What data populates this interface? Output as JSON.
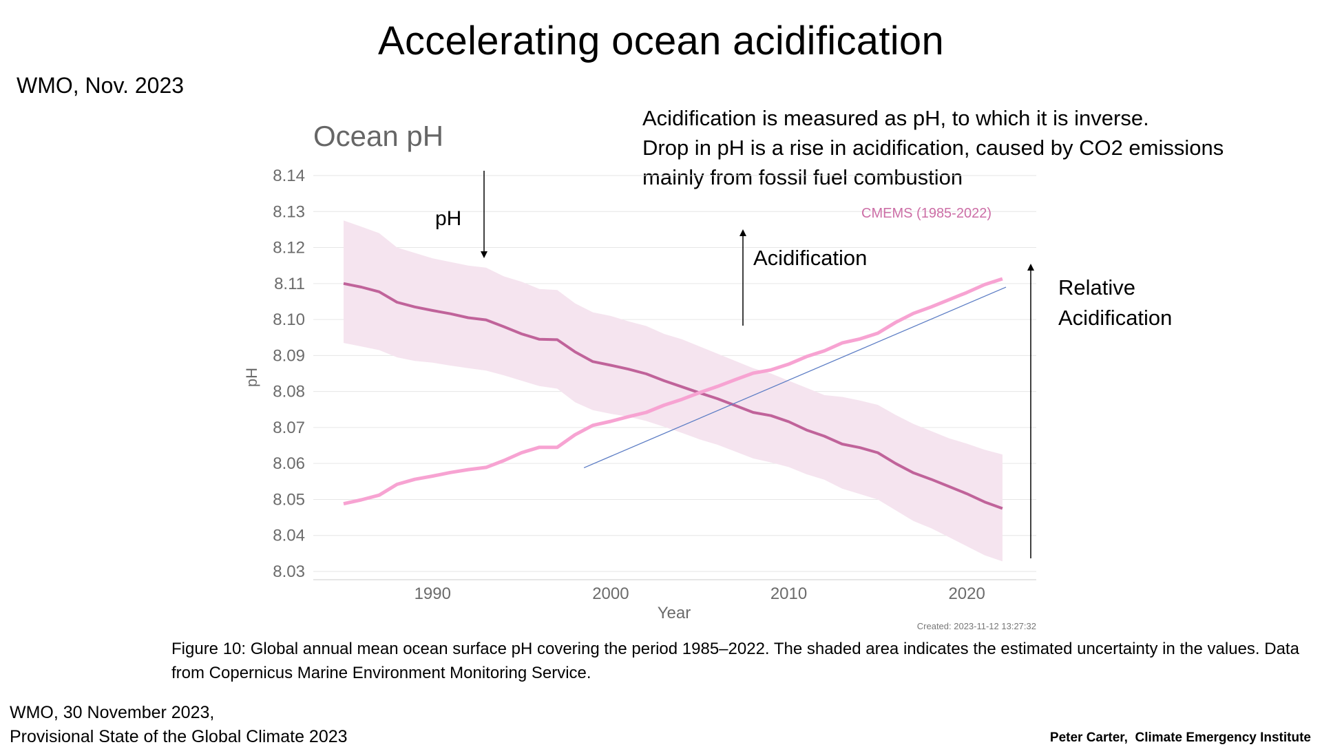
{
  "slide": {
    "title": "Accelerating ocean acidification",
    "wmo_short": "WMO, Nov. 2023",
    "explanation_lines": [
      "Acidification is measured as pH, to which it is inverse.",
      "Drop in pH is a rise in acidification, caused by CO2 emissions",
      "mainly from fossil fuel combustion"
    ],
    "caption": "Figure 10: Global annual mean ocean surface pH covering the period 1985–2022. The shaded area indicates the estimated uncertainty in the values. Data from Copernicus Marine Environment Monitoring Service.",
    "source_line1": "WMO, 30 November 2023,",
    "source_line2": "Provisional State of the Global Climate 2023",
    "credit": "Peter Carter,  Climate Emergency Institute"
  },
  "chart_data": {
    "type": "line",
    "title": "Ocean pH",
    "xlabel": "Year",
    "ylabel": "pH",
    "xlim": [
      1983.3,
      2023.9
    ],
    "ylim": [
      8.03,
      8.14
    ],
    "x_ticks": [
      1990,
      2000,
      2010,
      2020
    ],
    "y_ticks": [
      8.03,
      8.04,
      8.05,
      8.06,
      8.07,
      8.08,
      8.09,
      8.1,
      8.11,
      8.12,
      8.13,
      8.14
    ],
    "y_tick_labels": [
      "8.03",
      "8.04",
      "8.05",
      "8.06",
      "8.07",
      "8.08",
      "8.09",
      "8.10",
      "8.11",
      "8.12",
      "8.13",
      "8.14"
    ],
    "grid": true,
    "legend": {
      "label": "CMEMS (1985-2022)",
      "placement": "top-right"
    },
    "created": "Created: 2023-11-12 13:27:32",
    "colors": {
      "ph_line": "#c0639a",
      "band": "#f5e4ef",
      "inverted_line": "#f7a3d2",
      "trend_line": "#5b7cc4",
      "legend": "#cc6ea6",
      "arrow": "#000000"
    },
    "series": [
      {
        "name": "CMEMS (1985-2022)",
        "x": [
          1985,
          1986,
          1987,
          1988,
          1989,
          1990,
          1991,
          1992,
          1993,
          1994,
          1995,
          1996,
          1997,
          1998,
          1999,
          2000,
          2001,
          2002,
          2003,
          2004,
          2005,
          2006,
          2007,
          2008,
          2009,
          2010,
          2011,
          2012,
          2013,
          2014,
          2015,
          2016,
          2017,
          2018,
          2019,
          2020,
          2021,
          2022
        ],
        "y": [
          8.11,
          8.109,
          8.1077,
          8.1048,
          8.1035,
          8.1025,
          8.1016,
          8.1005,
          8.0999,
          8.098,
          8.096,
          8.0945,
          8.0944,
          8.091,
          8.0883,
          8.0873,
          8.0862,
          8.0849,
          8.083,
          8.0813,
          8.0796,
          8.078,
          8.0761,
          8.0742,
          8.0733,
          8.0716,
          8.0693,
          8.0676,
          8.0654,
          8.0644,
          8.063,
          8.06,
          8.0574,
          8.0556,
          8.0536,
          8.0516,
          8.0493,
          8.0475
        ],
        "y_upper": [
          8.1275,
          8.1258,
          8.124,
          8.12,
          8.1185,
          8.117,
          8.116,
          8.115,
          8.1144,
          8.112,
          8.1105,
          8.1085,
          8.1082,
          8.1045,
          8.102,
          8.101,
          8.0995,
          8.0982,
          8.096,
          8.0945,
          8.0925,
          8.0905,
          8.0885,
          8.0865,
          8.085,
          8.083,
          8.081,
          8.079,
          8.0785,
          8.0775,
          8.0763,
          8.0735,
          8.071,
          8.069,
          8.067,
          8.0655,
          8.0638,
          8.0625
        ],
        "y_lower": [
          8.0935,
          8.0925,
          8.0915,
          8.0895,
          8.0885,
          8.088,
          8.0872,
          8.0865,
          8.0858,
          8.0845,
          8.083,
          8.0815,
          8.0808,
          8.077,
          8.0748,
          8.0738,
          8.073,
          8.0718,
          8.0702,
          8.0685,
          8.0667,
          8.0652,
          8.0633,
          8.0614,
          8.0603,
          8.059,
          8.057,
          8.0555,
          8.053,
          8.0515,
          8.05,
          8.047,
          8.044,
          8.042,
          8.0395,
          8.037,
          8.0345,
          8.0328
        ]
      },
      {
        "name": "",
        "x": [
          1985,
          1986,
          1987,
          1988,
          1989,
          1990,
          1991,
          1992,
          1993,
          1994,
          1995,
          1996,
          1997,
          1998,
          1999,
          2000,
          2001,
          2002,
          2003,
          2004,
          2005,
          2006,
          2007,
          2008,
          2009,
          2010,
          2011,
          2012,
          2013,
          2014,
          2015,
          2016,
          2017,
          2018,
          2019,
          2020,
          2021,
          2022
        ],
        "y": [
          8.0488,
          8.0499,
          8.0512,
          8.0542,
          8.0556,
          8.0565,
          8.0575,
          8.0583,
          8.0589,
          8.0608,
          8.063,
          8.0645,
          8.0645,
          8.068,
          8.0706,
          8.0717,
          8.073,
          8.0742,
          8.0762,
          8.0778,
          8.0797,
          8.0814,
          8.0833,
          8.0851,
          8.086,
          8.0876,
          8.0897,
          8.0913,
          8.0935,
          8.0946,
          8.0962,
          8.0992,
          8.1017,
          8.1035,
          8.1055,
          8.1075,
          8.1097,
          8.1113
        ]
      },
      {
        "name": "",
        "x": [
          1998.5,
          2022.2
        ],
        "y": [
          8.0588,
          8.109
        ]
      }
    ],
    "annotations": {
      "ph": "pH",
      "acidification": "Acidification",
      "relative_line1": "Relative",
      "relative_line2": "Acidification"
    }
  }
}
